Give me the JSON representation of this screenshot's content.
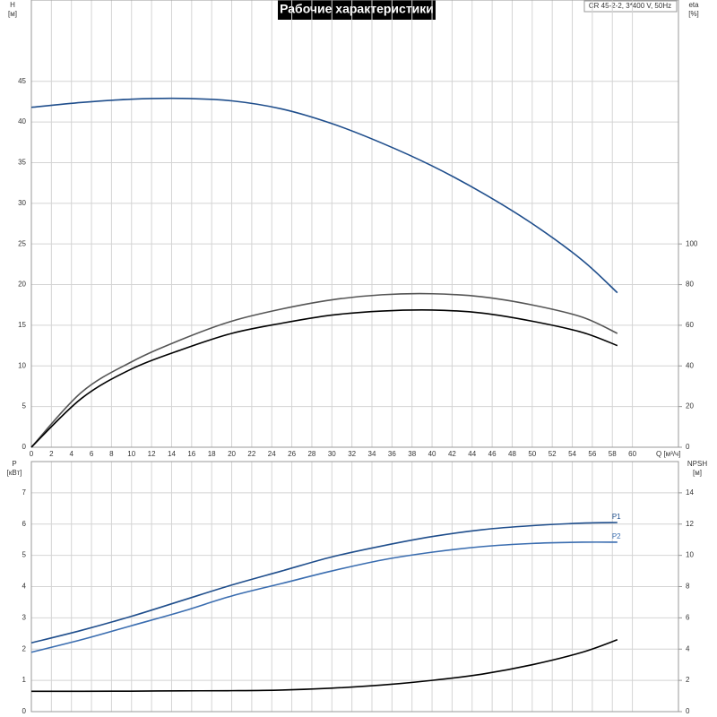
{
  "chart_data": [
    {
      "type": "line",
      "title": "Рабочие характеристики",
      "subtitle": "CR 45-2-2, 3*400 V, 50Hz",
      "y_label": "H",
      "y_unit": "[м]",
      "y2_label": "eta",
      "y2_unit": "[%]",
      "x_label": "Q [м³/ч]",
      "x": [
        0,
        5,
        10,
        15,
        20,
        25,
        30,
        35,
        40,
        45,
        50,
        55,
        58.5
      ],
      "xlim": [
        0,
        64.6
      ],
      "xticks": [
        0,
        2,
        4,
        6,
        8,
        10,
        12,
        14,
        16,
        18,
        20,
        22,
        24,
        26,
        28,
        30,
        32,
        34,
        36,
        38,
        40,
        42,
        44,
        46,
        48,
        50,
        52,
        54,
        56,
        58,
        60
      ],
      "ylim": [
        0,
        55
      ],
      "yticks": [
        0,
        5,
        10,
        15,
        20,
        25,
        30,
        35,
        40,
        45
      ],
      "y2lim": [
        0,
        220
      ],
      "y2ticks": [
        0,
        20,
        40,
        60,
        80,
        100
      ],
      "grid": true,
      "series": [
        {
          "color": "#1f4e8c",
          "values": [
            41.8,
            42.4,
            42.8,
            42.9,
            42.6,
            41.6,
            39.8,
            37.4,
            34.6,
            31.3,
            27.5,
            23.0,
            19.0
          ]
        },
        {
          "color": "#555555",
          "axis": "y2",
          "values": [
            0,
            27,
            42,
            53,
            62,
            68,
            72.5,
            75,
            75.5,
            74,
            70,
            64,
            56
          ]
        },
        {
          "color": "#000000",
          "axis": "y2",
          "values": [
            0,
            24,
            38.5,
            48,
            56,
            61,
            65,
            67,
            67.5,
            66,
            62,
            56.5,
            50
          ]
        }
      ]
    },
    {
      "type": "line",
      "y_label": "P",
      "y_unit": "[кВт]",
      "y2_label": "NPSH",
      "y2_unit": "[м]",
      "x": [
        0,
        5,
        10,
        15,
        20,
        25,
        30,
        35,
        40,
        45,
        50,
        55,
        58.5
      ],
      "xlim": [
        0,
        64.6
      ],
      "xticks": [
        0,
        2,
        4,
        6,
        8,
        10,
        12,
        14,
        16,
        18,
        20,
        22,
        24,
        26,
        28,
        30,
        32,
        34,
        36,
        38,
        40,
        42,
        44,
        46,
        48,
        50,
        52,
        54,
        56,
        58,
        60
      ],
      "ylim": [
        0,
        8
      ],
      "yticks": [
        0,
        1,
        2,
        3,
        4,
        5,
        6,
        7
      ],
      "y2lim": [
        0,
        16
      ],
      "y2ticks": [
        0,
        2,
        4,
        6,
        8,
        10,
        12,
        14
      ],
      "grid": true,
      "series": [
        {
          "name": "P1",
          "color": "#1f4e8c",
          "values": [
            2.2,
            2.6,
            3.05,
            3.55,
            4.05,
            4.5,
            4.95,
            5.3,
            5.6,
            5.82,
            5.95,
            6.03,
            6.05
          ]
        },
        {
          "name": "P2",
          "color": "#3a6db0",
          "values": [
            1.9,
            2.3,
            2.75,
            3.2,
            3.7,
            4.1,
            4.5,
            4.85,
            5.1,
            5.28,
            5.38,
            5.42,
            5.42
          ]
        },
        {
          "color": "#000000",
          "axis": "y2",
          "values": [
            1.3,
            1.3,
            1.31,
            1.33,
            1.34,
            1.38,
            1.5,
            1.7,
            2.0,
            2.4,
            3.0,
            3.8,
            4.6
          ]
        }
      ]
    }
  ]
}
